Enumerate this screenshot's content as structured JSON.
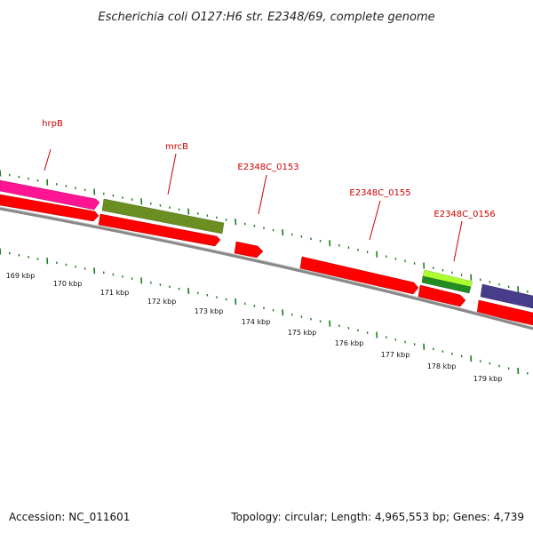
{
  "title": "Escherichia coli O127:H6 str. E2348/69, complete genome",
  "footer": {
    "accession": "Accession: NC_011601",
    "summary": "Topology: circular; Length: 4,965,553 bp; Genes: 4,739"
  },
  "genes": [
    {
      "label": "hrpB",
      "color": "#ff1493"
    },
    {
      "label": "mrcB",
      "color": "#6b8e23"
    },
    {
      "label": "E2348C_0153",
      "color": "#ff0000"
    },
    {
      "label": "E2348C_0155",
      "color": "#ff0000"
    },
    {
      "label": "E2348C_0156",
      "color": "#7fff00"
    }
  ],
  "scale_ticks": [
    "169 kbp",
    "170 kbp",
    "171 kbp",
    "172 kbp",
    "173 kbp",
    "174 kbp",
    "175 kbp",
    "176 kbp",
    "177 kbp",
    "178 kbp",
    "179 kbp"
  ],
  "colors": {
    "cds": "#ff0000",
    "tick": "#1e7a1e",
    "backbone": "#888888",
    "extra_gene": "#483d8b",
    "dark_green_gene": "#228b22"
  }
}
